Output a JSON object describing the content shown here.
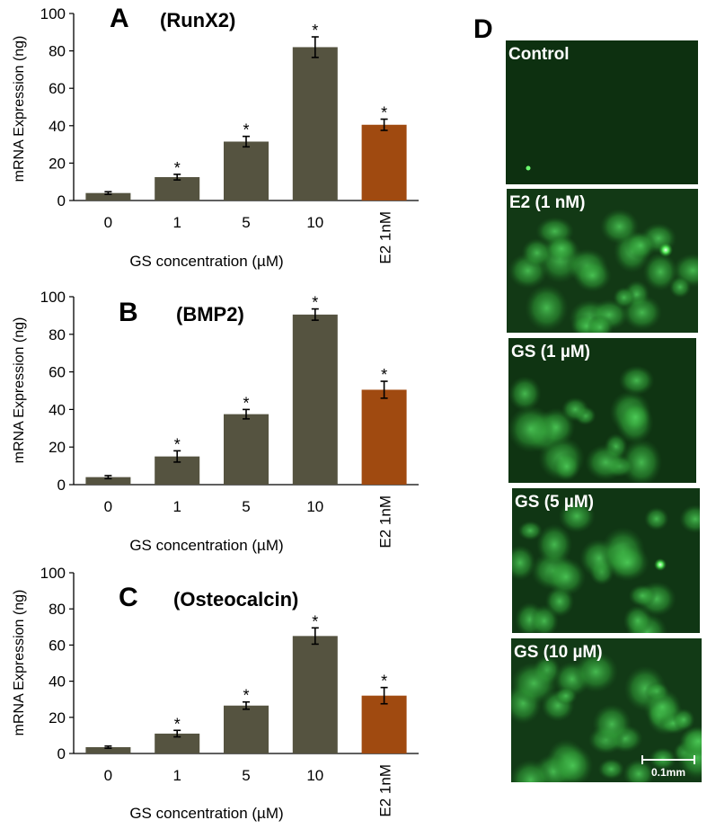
{
  "chart_data": [
    {
      "type": "bar",
      "letter": "A",
      "title": "(RunX2)",
      "xlabel": "GS concentration  (µM)",
      "ylabel": "mRNA Expression  (ng)",
      "ylim": [
        0,
        100
      ],
      "yticks": [
        0,
        20,
        40,
        60,
        80,
        100
      ],
      "categories": [
        "0",
        "1",
        "5",
        "10",
        "E2 1nM"
      ],
      "values": [
        4,
        12.5,
        31.5,
        82,
        40.5
      ],
      "errors": [
        0.7,
        1.5,
        2.8,
        5.5,
        3
      ],
      "significant": [
        false,
        true,
        true,
        true,
        true
      ],
      "significance_mark": "*",
      "colors": [
        "#555340",
        "#555340",
        "#555340",
        "#555340",
        "#a04a10"
      ]
    },
    {
      "type": "bar",
      "letter": "B",
      "title": "(BMP2)",
      "xlabel": "GS concentration  (µM)",
      "ylabel": "mRNA Expression  (ng)",
      "ylim": [
        0,
        100
      ],
      "yticks": [
        0,
        20,
        40,
        60,
        80,
        100
      ],
      "categories": [
        "0",
        "1",
        "5",
        "10",
        "E2 1nM"
      ],
      "values": [
        4,
        15,
        37.5,
        90.5,
        50.5
      ],
      "errors": [
        0.8,
        3,
        2.5,
        3,
        4.5
      ],
      "significant": [
        false,
        true,
        true,
        true,
        true
      ],
      "significance_mark": "*",
      "colors": [
        "#555340",
        "#555340",
        "#555340",
        "#555340",
        "#a04a10"
      ]
    },
    {
      "type": "bar",
      "letter": "C",
      "title": "(Osteocalcin)",
      "xlabel": "GS concentration  (µM)",
      "ylabel": "mRNA Expression  (ng)",
      "ylim": [
        0,
        100
      ],
      "yticks": [
        0,
        20,
        40,
        60,
        80,
        100
      ],
      "categories": [
        "0",
        "1",
        "5",
        "10",
        "E2 1nM"
      ],
      "values": [
        3.5,
        11,
        26.5,
        65,
        32
      ],
      "errors": [
        0.6,
        1.8,
        2,
        4.5,
        4.5
      ],
      "significant": [
        false,
        true,
        true,
        true,
        true
      ],
      "significance_mark": "*",
      "colors": [
        "#555340",
        "#555340",
        "#555340",
        "#555340",
        "#a04a10"
      ]
    }
  ],
  "micrographs": {
    "letter": "D",
    "panels": [
      "Control",
      "E2 (1 nM)",
      "GS (1 µM)",
      "GS (5 µM)",
      "GS (10 µM)"
    ],
    "scale_bar_label": "0.1mm"
  }
}
